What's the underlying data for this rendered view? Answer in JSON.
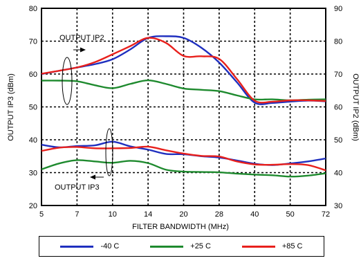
{
  "chart_data": {
    "type": "line",
    "title": "",
    "xlabel": "FILTER BANDWIDTH (MHz)",
    "ylabel_left": "OUTPUT IP3 (dBm)",
    "ylabel_right": "OUTPUT IP2 (dBm)",
    "x_ticks": [
      "5",
      "7",
      "10",
      "14",
      "20",
      "28",
      "40",
      "50",
      "72"
    ],
    "yleft_ticks": [
      "20",
      "30",
      "40",
      "50",
      "60",
      "70",
      "80"
    ],
    "yright_ticks": [
      "30",
      "40",
      "50",
      "60",
      "70",
      "80",
      "90"
    ],
    "yleft_lim": [
      20,
      80
    ],
    "yright_lim": [
      30,
      90
    ],
    "grid": true,
    "legend_position": "bottom",
    "annotations": {
      "ip2": "OUTPUT IP2",
      "ip3": "OUTPUT IP3"
    },
    "series": [
      {
        "name": "-40 C",
        "group": "ip2",
        "axis": "right",
        "color": "#1f2fbf",
        "x": [
          0,
          0.5,
          1,
          1.5,
          2,
          2.5,
          3,
          3.5,
          4,
          4.5,
          5,
          5.5,
          6,
          6.5,
          7,
          7.5,
          8
        ],
        "y": [
          70,
          71,
          72,
          73,
          74.5,
          77.5,
          81,
          81.5,
          81,
          78,
          73.5,
          67.5,
          61.3,
          61.2,
          61.6,
          61.9,
          61.7
        ]
      },
      {
        "name": "+25 C",
        "group": "ip2",
        "axis": "right",
        "color": "#1e8a2e",
        "x": [
          0,
          0.5,
          1,
          1.5,
          2,
          2.5,
          3,
          3.5,
          4,
          4.5,
          5,
          5.5,
          6,
          6.5,
          7,
          7.5,
          8
        ],
        "y": [
          68,
          68,
          67.8,
          66.6,
          65.7,
          67,
          68.1,
          67,
          65.6,
          65.2,
          64.8,
          63.5,
          62.3,
          62.3,
          62,
          62.2,
          62.3
        ]
      },
      {
        "name": "+85 C",
        "group": "ip2",
        "axis": "right",
        "color": "#e8201c",
        "x": [
          0,
          0.5,
          1,
          1.5,
          2,
          2.5,
          3,
          3.5,
          4,
          4.5,
          5,
          5.5,
          6,
          6.5,
          7,
          7.5,
          8
        ],
        "y": [
          70.1,
          71,
          72,
          73.6,
          76,
          78.5,
          81,
          79.5,
          75.5,
          75.4,
          74.6,
          68.5,
          61.9,
          61.6,
          62,
          62,
          61.8
        ]
      },
      {
        "name": "-40 C",
        "group": "ip3",
        "axis": "left",
        "color": "#1f2fbf",
        "x": [
          0,
          0.5,
          1,
          1.5,
          2,
          2.5,
          3,
          3.5,
          4,
          4.5,
          5,
          5.5,
          6,
          6.5,
          7,
          7.5,
          8
        ],
        "y": [
          38.5,
          37.7,
          38.1,
          38.3,
          39.4,
          38,
          37,
          35.7,
          35.6,
          35,
          34.6,
          33.7,
          32.7,
          32.3,
          32.8,
          33.4,
          34.3
        ]
      },
      {
        "name": "+25 C",
        "group": "ip3",
        "axis": "left",
        "color": "#1e8a2e",
        "x": [
          0,
          0.5,
          1,
          1.5,
          2,
          2.5,
          3,
          3.5,
          4,
          4.5,
          5,
          5.5,
          6,
          6.5,
          7,
          7.5,
          8
        ],
        "y": [
          31,
          32.8,
          33.8,
          33.4,
          33,
          33.6,
          32.9,
          30.9,
          30.3,
          30.2,
          30.1,
          29.7,
          29.4,
          29.2,
          28.8,
          29.1,
          29.8
        ]
      },
      {
        "name": "+85 C",
        "group": "ip3",
        "axis": "left",
        "color": "#e8201c",
        "x": [
          0,
          0.5,
          1,
          1.5,
          2,
          2.5,
          3,
          3.5,
          4,
          4.5,
          5,
          5.5,
          6,
          6.5,
          7,
          7.5,
          8
        ],
        "y": [
          36.6,
          37.6,
          37.8,
          37.4,
          37.4,
          37.5,
          37.9,
          36.8,
          35.8,
          35.1,
          34.9,
          33.4,
          32.5,
          32.4,
          32.6,
          32.3,
          30.7
        ]
      }
    ]
  },
  "legend": [
    {
      "label": "-40 C",
      "color": "#1f2fbf"
    },
    {
      "label": "+25 C",
      "color": "#1e8a2e"
    },
    {
      "label": "+85 C",
      "color": "#e8201c"
    }
  ]
}
